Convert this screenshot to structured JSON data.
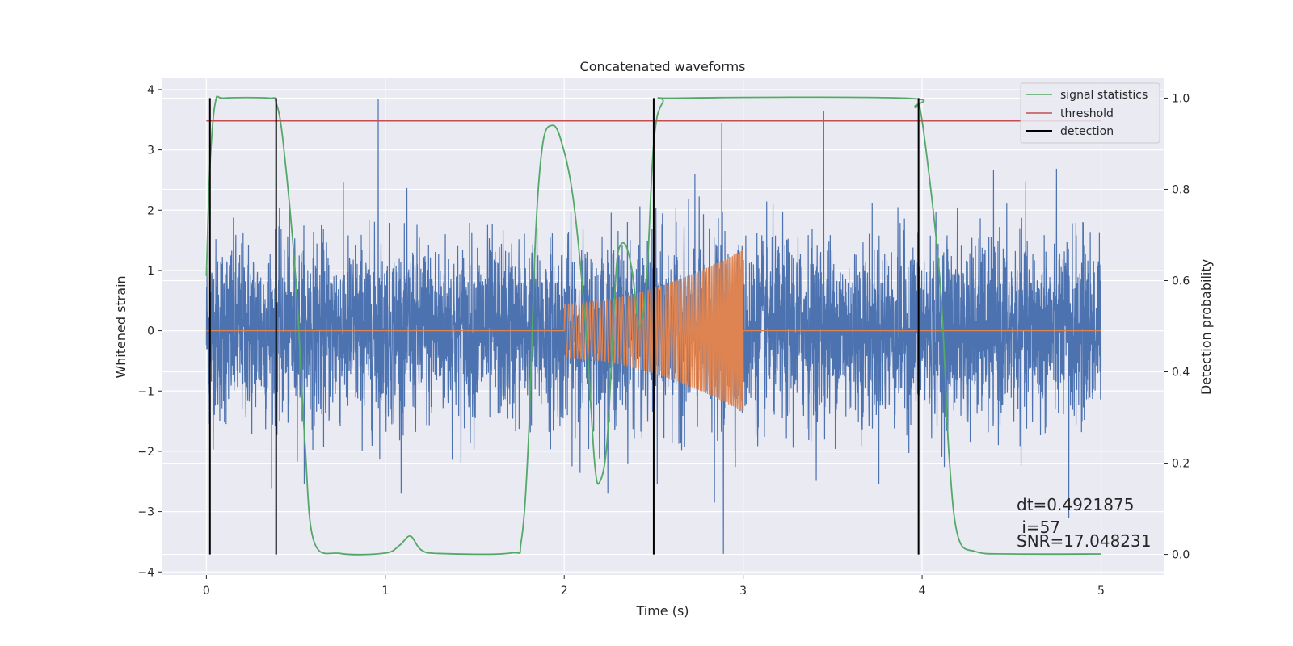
{
  "chart_data": {
    "type": "line",
    "title": "Concatenated waveforms",
    "xlabel": "Time (s)",
    "ylabel": "Whitened strain",
    "y2label": "Detection probability",
    "xlim": [
      -0.25,
      5.35
    ],
    "ylim": [
      -4.05,
      4.2
    ],
    "y2lim": [
      -0.045,
      1.045
    ],
    "x_ticks": [
      0,
      1,
      2,
      3,
      4,
      5
    ],
    "y_ticks": [
      -4,
      -3,
      -2,
      -1,
      0,
      1,
      2,
      3,
      4
    ],
    "y2_ticks": [
      0.0,
      0.2,
      0.4,
      0.6,
      0.8,
      1.0
    ],
    "x_tick_labels": [
      "0",
      "1",
      "2",
      "3",
      "4",
      "5"
    ],
    "y_tick_labels": [
      "−4",
      "−3",
      "−2",
      "−1",
      "0",
      "1",
      "2",
      "3",
      "4"
    ],
    "y2_tick_labels": [
      "0.0",
      "0.2",
      "0.4",
      "0.6",
      "0.8",
      "1.0"
    ],
    "grid": true,
    "legend_position": "top-right",
    "series": [
      {
        "name": "",
        "role": "whitened strain",
        "axis": "left",
        "color": "#4c72b0",
        "noise_std": 0.75,
        "x_range": [
          0,
          5
        ],
        "peak_spikes": [
          [
            0.96,
            3.85
          ],
          [
            2.52,
            -2.55
          ],
          [
            2.73,
            2.6
          ],
          [
            2.84,
            -2.85
          ],
          [
            2.88,
            3.45
          ],
          [
            2.89,
            -3.7
          ],
          [
            3.45,
            3.65
          ],
          [
            4.82,
            -3.1
          ]
        ]
      },
      {
        "name": "",
        "role": "injected chirp",
        "axis": "left",
        "color": "#dd8452",
        "x_range": [
          2.0,
          3.0
        ],
        "start_amplitude": 0.45,
        "end_amplitude": 1.35,
        "start_frequency_hz": 50,
        "end_frequency_hz": 130
      },
      {
        "name": "signal statistics",
        "axis": "right",
        "color": "#55a868",
        "x": [
          0,
          0.02,
          0.05,
          0.1,
          0.35,
          0.39,
          0.43,
          0.5,
          0.55,
          0.6,
          0.75,
          1.0,
          1.08,
          1.14,
          1.2,
          1.3,
          1.7,
          1.76,
          1.8,
          1.84,
          1.88,
          1.93,
          1.98,
          2.05,
          2.12,
          2.17,
          2.2,
          2.24,
          2.28,
          2.3,
          2.34,
          2.38,
          2.42,
          2.46,
          2.5,
          2.55,
          2.65,
          3.9,
          3.96,
          4.0,
          4.1,
          4.15,
          4.2,
          4.3,
          4.5,
          5.0
        ],
        "values": [
          0.61,
          0.85,
          0.99,
          1.0,
          1.0,
          0.99,
          0.9,
          0.6,
          0.25,
          0.03,
          0.002,
          0.003,
          0.02,
          0.04,
          0.01,
          0.002,
          0.003,
          0.03,
          0.25,
          0.7,
          0.9,
          0.94,
          0.91,
          0.78,
          0.5,
          0.2,
          0.16,
          0.25,
          0.55,
          0.66,
          0.68,
          0.62,
          0.5,
          0.6,
          0.9,
          0.99,
          1.0,
          1.0,
          0.98,
          0.95,
          0.6,
          0.22,
          0.04,
          0.006,
          0.001,
          0.001
        ]
      },
      {
        "name": "threshold",
        "axis": "right",
        "color": "#c44e52",
        "x": [
          0,
          5
        ],
        "values": [
          0.95,
          0.95
        ]
      },
      {
        "name": "detection",
        "axis": "right",
        "color": "#000000",
        "vertical_lines_x": [
          0.02,
          0.39,
          2.5,
          3.98
        ],
        "y_span": [
          0.0,
          1.0
        ]
      }
    ],
    "annotations": [
      "dt=0.4921875",
      " i=57",
      "SNR=17.048231"
    ]
  }
}
